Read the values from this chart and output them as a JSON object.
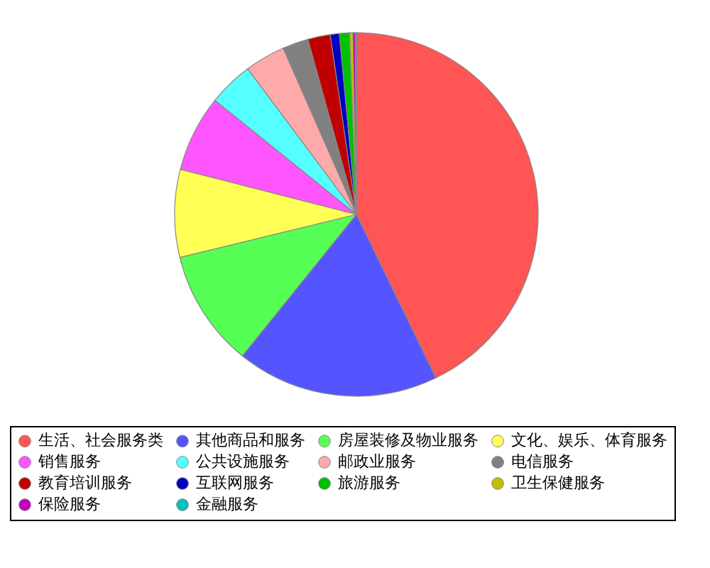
{
  "chart_data": {
    "type": "pie",
    "legend": "bottom",
    "categories": [
      "生活、社会服务类",
      "其他商品和服务",
      "房屋装修及物业服务",
      "文化、娱乐、体育服务",
      "销售服务",
      "公共设施服务",
      "邮政业服务",
      "电信服务",
      "教育培训服务",
      "互联网服务",
      "旅游服务",
      "卫生保健服务",
      "保险服务",
      "金融服务"
    ],
    "values": [
      42.8,
      18,
      10.4,
      7.8,
      6.8,
      4,
      3.6,
      2.3,
      2,
      0.8,
      0.9,
      0.3,
      0.2,
      0.1
    ],
    "colors": [
      "#ff5555",
      "#5555ff",
      "#55ff55",
      "#ffff55",
      "#ff55ff",
      "#55ffff",
      "#ffaaaa",
      "#808080",
      "#c00000",
      "#0000c0",
      "#00c000",
      "#c0c000",
      "#c000c0",
      "#00c0c0"
    ]
  }
}
